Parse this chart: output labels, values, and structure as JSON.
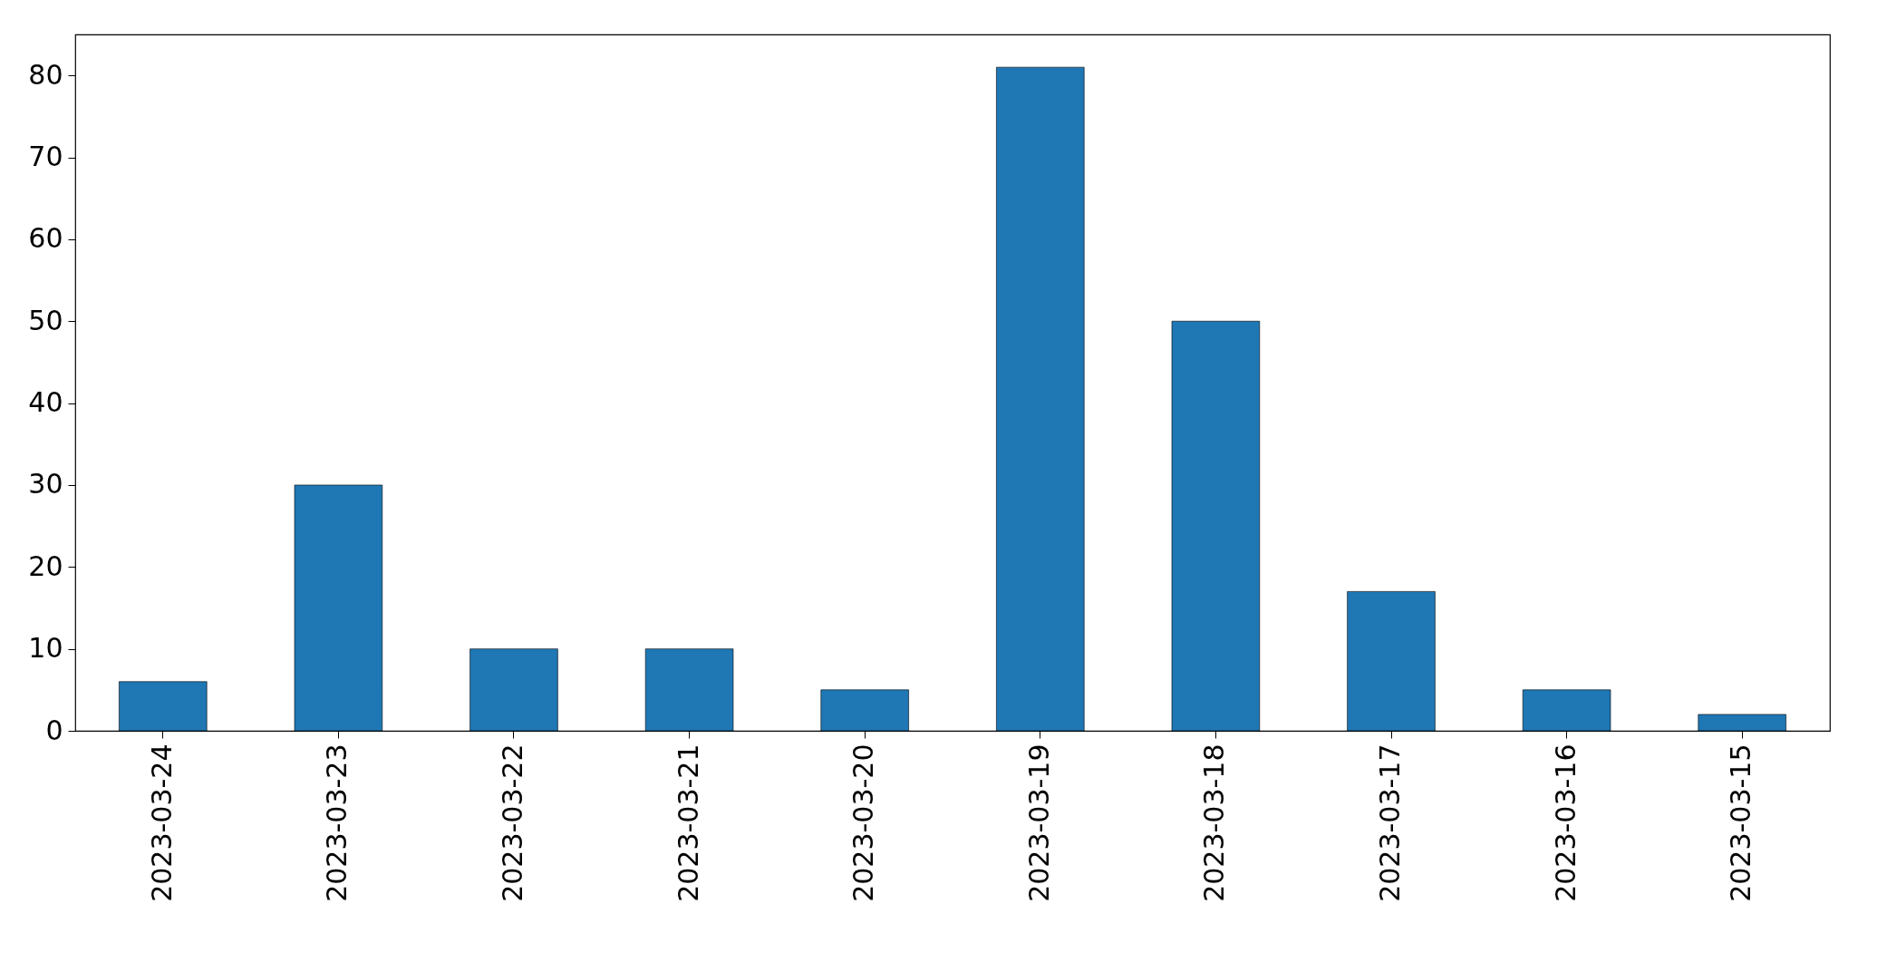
{
  "chart_data": {
    "type": "bar",
    "categories": [
      "2023-03-24",
      "2023-03-23",
      "2023-03-22",
      "2023-03-21",
      "2023-03-20",
      "2023-03-19",
      "2023-03-18",
      "2023-03-17",
      "2023-03-16",
      "2023-03-15"
    ],
    "values": [
      6,
      30,
      10,
      10,
      5,
      81,
      50,
      17,
      5,
      2
    ],
    "color": "#1f77b4",
    "ylim": [
      0,
      85
    ],
    "yticks": [
      0,
      10,
      20,
      30,
      40,
      50,
      60,
      70,
      80
    ],
    "grid": false
  }
}
